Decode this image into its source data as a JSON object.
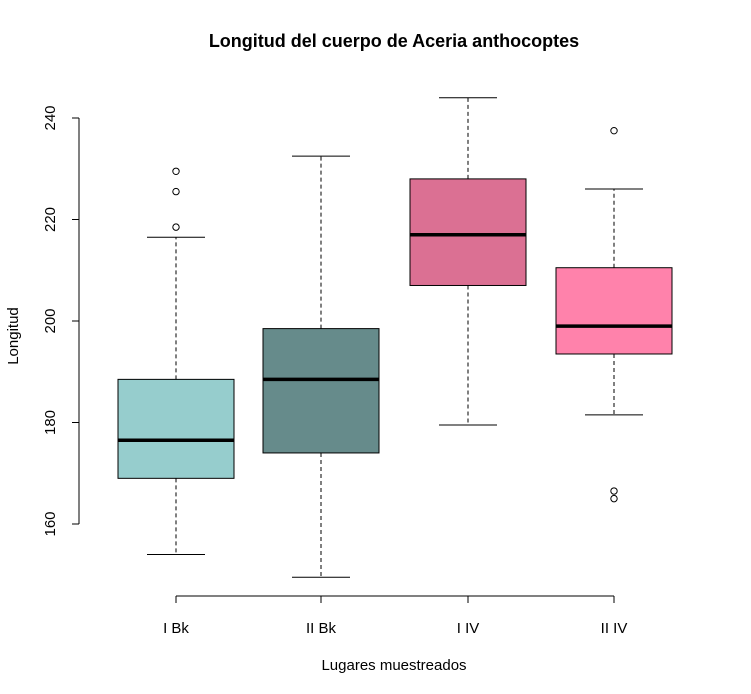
{
  "chart_data": {
    "type": "boxplot",
    "title": "Longitud del cuerpo de Aceria anthocoptes",
    "xlabel": "Lugares muestreados",
    "ylabel": "Longitud",
    "ylim": [
      145,
      250
    ],
    "yticks": [
      160,
      180,
      200,
      220,
      240
    ],
    "grid": false,
    "categories": [
      "I Bk",
      "II Bk",
      "I IV",
      "II IV"
    ],
    "boxes": [
      {
        "category": "I Bk",
        "color": "#96CDCD",
        "whisker_low": 154,
        "q1": 169,
        "median": 176.5,
        "q3": 188.5,
        "whisker_high": 216.5,
        "outliers": [
          218.5,
          225.5,
          229.5
        ]
      },
      {
        "category": "II Bk",
        "color": "#668B8B",
        "whisker_low": 149.5,
        "q1": 174,
        "median": 188.5,
        "q3": 198.5,
        "whisker_high": 232.5,
        "outliers": []
      },
      {
        "category": "I IV",
        "color": "#DB7093",
        "whisker_low": 179.5,
        "q1": 207,
        "median": 217,
        "q3": 228,
        "whisker_high": 244,
        "outliers": []
      },
      {
        "category": "II IV",
        "color": "#FF82AB",
        "whisker_low": 181.5,
        "q1": 193.5,
        "median": 199,
        "q3": 210.5,
        "whisker_high": 226,
        "outliers": [
          237.5,
          166.5,
          165
        ]
      }
    ]
  }
}
